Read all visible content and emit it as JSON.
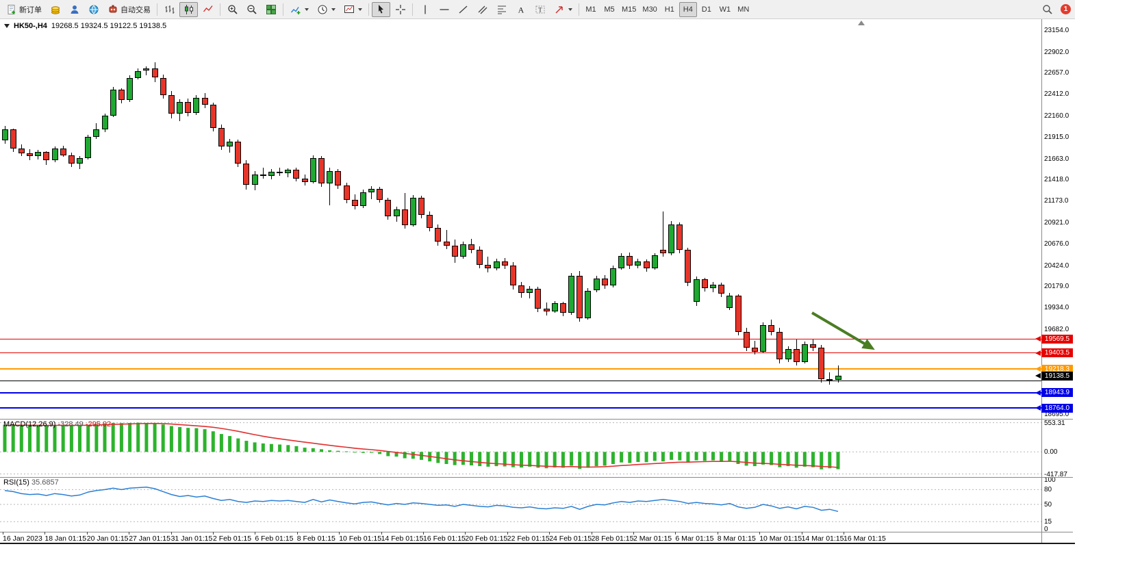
{
  "toolbar": {
    "new_order_label": "新订单",
    "auto_trading_label": "自动交易",
    "timeframes": [
      "M1",
      "M5",
      "M15",
      "M30",
      "H1",
      "H4",
      "D1",
      "W1",
      "MN"
    ],
    "active_timeframe": "H4",
    "notification_badge": "1"
  },
  "chart": {
    "title_symbol": "HK50-,H4",
    "title_ohlc": "19268.5 19324.5 19122.5 19138.5"
  },
  "colors": {
    "candle_up": "#1fa832",
    "candle_down": "#e8352a",
    "macd_hist": "#2db32d",
    "macd_signal": "#e03030",
    "rsi_line": "#2a7fd4",
    "arrow": "#4a7d23"
  },
  "chart_data": {
    "type": "candlestick",
    "symbol": "HK50-",
    "timeframe": "H4",
    "ohlc": {
      "open": 19268.5,
      "high": 19324.5,
      "low": 19122.5,
      "close": 19138.5
    },
    "price_axis": {
      "max": 23280,
      "min": 18640,
      "labels": [
        "23154.0",
        "22902.0",
        "22657.0",
        "22412.0",
        "22160.0",
        "21915.0",
        "21663.0",
        "21418.0",
        "21173.0",
        "20921.0",
        "20676.0",
        "20424.0",
        "20179.0",
        "19934.0",
        "19682.0",
        "18695.0"
      ]
    },
    "time_axis": {
      "labels": [
        "16 Jan 2023",
        "18 Jan 01:15",
        "20 Jan 01:15",
        "27 Jan 01:15",
        "31 Jan 01:15",
        "2 Feb 01:15",
        "6 Feb 01:15",
        "8 Feb 01:15",
        "10 Feb 01:15",
        "14 Feb 01:15",
        "16 Feb 01:15",
        "20 Feb 01:15",
        "22 Feb 01:15",
        "24 Feb 01:15",
        "28 Feb 01:15",
        "2 Mar 01:15",
        "6 Mar 01:15",
        "8 Mar 01:15",
        "10 Mar 01:15",
        "14 Mar 01:15",
        "16 Mar 01:15"
      ]
    },
    "levels": [
      {
        "price": 19569.5,
        "label": "19569.5",
        "color": "#e60000",
        "thickness": 1
      },
      {
        "price": 19403.5,
        "label": "19403.5",
        "color": "#e60000",
        "thickness": 1
      },
      {
        "price": 19218.3,
        "label": "19218.3",
        "color": "#ff9a00",
        "thickness": 2
      },
      {
        "price": 19138.5,
        "label": "19138.5",
        "color": "#000000",
        "thickness": 0
      },
      {
        "price": 19085,
        "label": "",
        "color": "#000000",
        "thickness": 1
      },
      {
        "price": 18943.9,
        "label": "18943.9",
        "color": "#0000e6",
        "thickness": 2
      },
      {
        "price": 18764.0,
        "label": "18764.0",
        "color": "#0000e6",
        "thickness": 2
      }
    ],
    "annotation_arrow": {
      "color": "#4a7d23"
    },
    "candles": [
      [
        21870,
        22040,
        21830,
        22000
      ],
      [
        22000,
        22010,
        21740,
        21780
      ],
      [
        21780,
        21830,
        21690,
        21720
      ],
      [
        21720,
        21770,
        21640,
        21690
      ],
      [
        21690,
        21760,
        21650,
        21740
      ],
      [
        21740,
        21750,
        21590,
        21640
      ],
      [
        21640,
        21800,
        21620,
        21780
      ],
      [
        21780,
        21810,
        21680,
        21700
      ],
      [
        21700,
        21730,
        21560,
        21600
      ],
      [
        21600,
        21690,
        21540,
        21670
      ],
      [
        21670,
        21940,
        21650,
        21910
      ],
      [
        21910,
        22070,
        21890,
        22000
      ],
      [
        22000,
        22180,
        21970,
        22160
      ],
      [
        22160,
        22490,
        22140,
        22460
      ],
      [
        22460,
        22480,
        22300,
        22340
      ],
      [
        22340,
        22630,
        22320,
        22600
      ],
      [
        22600,
        22710,
        22580,
        22680
      ],
      [
        22680,
        22730,
        22630,
        22710
      ],
      [
        22710,
        22780,
        22550,
        22600
      ],
      [
        22600,
        22640,
        22360,
        22400
      ],
      [
        22400,
        22450,
        22130,
        22180
      ],
      [
        22180,
        22350,
        22100,
        22320
      ],
      [
        22320,
        22360,
        22150,
        22190
      ],
      [
        22190,
        22400,
        22170,
        22370
      ],
      [
        22370,
        22420,
        22250,
        22290
      ],
      [
        22290,
        22310,
        21980,
        22020
      ],
      [
        22020,
        22060,
        21760,
        21800
      ],
      [
        21800,
        21890,
        21730,
        21860
      ],
      [
        21860,
        21880,
        21560,
        21600
      ],
      [
        21600,
        21640,
        21300,
        21360
      ],
      [
        21360,
        21520,
        21290,
        21480
      ],
      [
        21480,
        21560,
        21430,
        21460
      ],
      [
        21460,
        21540,
        21420,
        21510
      ],
      [
        21510,
        21560,
        21460,
        21490
      ],
      [
        21490,
        21550,
        21440,
        21530
      ],
      [
        21530,
        21560,
        21400,
        21430
      ],
      [
        21430,
        21480,
        21350,
        21390
      ],
      [
        21390,
        21700,
        21370,
        21670
      ],
      [
        21670,
        21690,
        21330,
        21370
      ],
      [
        21370,
        21560,
        21120,
        21520
      ],
      [
        21520,
        21540,
        21310,
        21350
      ],
      [
        21350,
        21380,
        21140,
        21180
      ],
      [
        21180,
        21250,
        21070,
        21110
      ],
      [
        21110,
        21300,
        21090,
        21270
      ],
      [
        21270,
        21340,
        21190,
        21310
      ],
      [
        21310,
        21330,
        21150,
        21180
      ],
      [
        21180,
        21210,
        20950,
        20990
      ],
      [
        20990,
        21100,
        20930,
        21070
      ],
      [
        21070,
        21260,
        20850,
        20890
      ],
      [
        20890,
        21240,
        20870,
        21210
      ],
      [
        21210,
        21230,
        20970,
        21010
      ],
      [
        21010,
        21050,
        20820,
        20860
      ],
      [
        20860,
        20900,
        20650,
        20700
      ],
      [
        20700,
        20830,
        20610,
        20650
      ],
      [
        20650,
        20720,
        20450,
        20520
      ],
      [
        20520,
        20700,
        20500,
        20670
      ],
      [
        20670,
        20730,
        20560,
        20600
      ],
      [
        20600,
        20640,
        20390,
        20430
      ],
      [
        20430,
        20520,
        20340,
        20390
      ],
      [
        20390,
        20500,
        20360,
        20470
      ],
      [
        20470,
        20510,
        20380,
        20420
      ],
      [
        20420,
        20460,
        20140,
        20190
      ],
      [
        20190,
        20230,
        20050,
        20100
      ],
      [
        20100,
        20180,
        20040,
        20150
      ],
      [
        20150,
        20170,
        19880,
        19920
      ],
      [
        19920,
        19990,
        19840,
        19890
      ],
      [
        19890,
        20010,
        19870,
        19980
      ],
      [
        19980,
        20000,
        19830,
        19870
      ],
      [
        19870,
        20330,
        19850,
        20300
      ],
      [
        20300,
        20360,
        19770,
        19810
      ],
      [
        19810,
        20160,
        19790,
        20130
      ],
      [
        20130,
        20300,
        20110,
        20270
      ],
      [
        20270,
        20310,
        20150,
        20190
      ],
      [
        20190,
        20420,
        20170,
        20390
      ],
      [
        20390,
        20560,
        20370,
        20530
      ],
      [
        20530,
        20570,
        20380,
        20420
      ],
      [
        20420,
        20500,
        20390,
        20470
      ],
      [
        20470,
        20490,
        20350,
        20390
      ],
      [
        20390,
        20560,
        20370,
        20540
      ],
      [
        20600,
        21050,
        20520,
        20560
      ],
      [
        20560,
        20940,
        20540,
        20900
      ],
      [
        20900,
        20920,
        20560,
        20600
      ],
      [
        20600,
        20630,
        20180,
        20220
      ],
      [
        20000,
        20290,
        19950,
        20260
      ],
      [
        20260,
        20280,
        20120,
        20160
      ],
      [
        20160,
        20230,
        20110,
        20200
      ],
      [
        20200,
        20220,
        20050,
        20090
      ],
      [
        19930,
        20100,
        19900,
        20070
      ],
      [
        20070,
        20090,
        19610,
        19650
      ],
      [
        19650,
        19700,
        19430,
        19470
      ],
      [
        19470,
        19550,
        19390,
        19420
      ],
      [
        19420,
        19760,
        19400,
        19730
      ],
      [
        19730,
        19790,
        19610,
        19650
      ],
      [
        19650,
        19700,
        19280,
        19330
      ],
      [
        19330,
        19480,
        19300,
        19450
      ],
      [
        19450,
        19560,
        19260,
        19300
      ],
      [
        19300,
        19540,
        19280,
        19510
      ],
      [
        19510,
        19560,
        19430,
        19470
      ],
      [
        19470,
        19500,
        19060,
        19100
      ],
      [
        19100,
        19180,
        19040,
        19090
      ],
      [
        19090,
        19260,
        19060,
        19138.5
      ]
    ],
    "macd": {
      "name": "MACD(12,26,9)",
      "value": "-328.49",
      "signal": "-295.02",
      "scale_labels": [
        "553.31",
        "0.00",
        "-417.87"
      ],
      "scale_values": [
        553.31,
        0,
        -417.87
      ],
      "range_max": 600,
      "range_min": -450,
      "histogram": [
        515,
        520,
        512,
        505,
        500,
        495,
        505,
        510,
        500,
        495,
        510,
        525,
        540,
        550,
        545,
        548,
        553,
        550,
        540,
        520,
        490,
        470,
        455,
        450,
        430,
        390,
        340,
        300,
        255,
        210,
        180,
        160,
        150,
        140,
        130,
        110,
        80,
        70,
        50,
        30,
        20,
        10,
        -10,
        -20,
        -15,
        -40,
        -80,
        -90,
        -120,
        -130,
        -150,
        -180,
        -210,
        -230,
        -250,
        -245,
        -255,
        -270,
        -280,
        -270,
        -275,
        -290,
        -295,
        -280,
        -300,
        -310,
        -295,
        -300,
        -260,
        -320,
        -300,
        -270,
        -260,
        -230,
        -200,
        -210,
        -190,
        -195,
        -170,
        -180,
        -150,
        -160,
        -190,
        -160,
        -170,
        -160,
        -180,
        -170,
        -230,
        -260,
        -270,
        -240,
        -250,
        -290,
        -270,
        -300,
        -280,
        -290,
        -330,
        -310,
        -328.49
      ],
      "signal_line": [
        500,
        503,
        505,
        505,
        504,
        503,
        503,
        504,
        504,
        503,
        504,
        508,
        514,
        521,
        526,
        530,
        535,
        538,
        539,
        536,
        528,
        517,
        505,
        494,
        482,
        466,
        444,
        419,
        390,
        358,
        326,
        297,
        271,
        248,
        227,
        206,
        184,
        164,
        144,
        124,
        105,
        88,
        70,
        54,
        42,
        27,
        8,
        -10,
        -29,
        -47,
        -66,
        -86,
        -108,
        -130,
        -151,
        -168,
        -183,
        -198,
        -213,
        -223,
        -232,
        -242,
        -252,
        -257,
        -265,
        -273,
        -277,
        -281,
        -277,
        -285,
        -288,
        -285,
        -280,
        -271,
        -258,
        -250,
        -239,
        -231,
        -220,
        -213,
        -202,
        -195,
        -194,
        -188,
        -184,
        -180,
        -180,
        -178,
        -187,
        -200,
        -213,
        -218,
        -224,
        -236,
        -242,
        -253,
        -258,
        -264,
        -276,
        -282,
        -295.02
      ]
    },
    "rsi": {
      "name": "RSI(15)",
      "value": "35.6857",
      "scale_labels": [
        "100",
        "80",
        "50",
        "15",
        "0"
      ],
      "scale_values": [
        100,
        80,
        50,
        15,
        0
      ],
      "level_lines": [
        80,
        50,
        15
      ],
      "values": [
        78,
        76,
        72,
        70,
        71,
        68,
        72,
        70,
        67,
        69,
        75,
        78,
        80,
        83,
        80,
        83,
        84,
        85,
        82,
        76,
        70,
        66,
        68,
        65,
        67,
        62,
        58,
        60,
        56,
        54,
        57,
        56,
        58,
        57,
        58,
        56,
        54,
        60,
        55,
        59,
        56,
        53,
        51,
        54,
        55,
        52,
        49,
        52,
        50,
        53,
        52,
        50,
        48,
        49,
        46,
        50,
        48,
        46,
        45,
        48,
        47,
        44,
        43,
        45,
        42,
        41,
        43,
        42,
        46,
        40,
        46,
        50,
        49,
        53,
        56,
        54,
        57,
        56,
        58,
        60,
        58,
        56,
        52,
        54,
        52,
        51,
        49,
        52,
        45,
        42,
        44,
        50,
        47,
        42,
        45,
        41,
        46,
        44,
        38,
        40,
        35.69
      ]
    }
  }
}
